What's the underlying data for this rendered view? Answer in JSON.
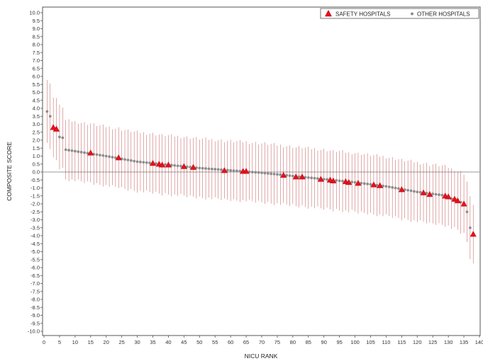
{
  "chart_data": {
    "type": "scatter",
    "xlabel": "NICU RANK",
    "ylabel": "COMPOSITE SCORE",
    "xlim": [
      0,
      140
    ],
    "ylim": [
      -10,
      10
    ],
    "x_ticks": [
      0,
      5,
      10,
      15,
      20,
      25,
      30,
      35,
      40,
      45,
      50,
      55,
      60,
      65,
      70,
      75,
      80,
      85,
      90,
      95,
      100,
      105,
      110,
      115,
      120,
      125,
      130,
      135,
      140
    ],
    "y_ticks": [
      10.0,
      9.5,
      9.0,
      8.5,
      8.0,
      7.5,
      7.0,
      6.5,
      6.0,
      5.5,
      5.0,
      4.5,
      4.0,
      3.5,
      3.0,
      2.5,
      2.0,
      1.5,
      1.0,
      0.5,
      0.0,
      -0.5,
      -1.0,
      -1.5,
      -2.0,
      -2.5,
      -3.0,
      -3.5,
      -4.0,
      -4.5,
      -5.0,
      -5.5,
      -6.0,
      -6.5,
      -7.0,
      -7.5,
      -8.0,
      -8.5,
      -9.0,
      -9.5,
      -10.0
    ],
    "x_tick_labels": [
      "0",
      "5",
      "10",
      "15",
      "20",
      "25",
      "30",
      "35",
      "40",
      "45",
      "50",
      "55",
      "60",
      "65",
      "70",
      "75",
      "80",
      "85",
      "90",
      "95",
      "100",
      "105",
      "110",
      "115",
      "120",
      "125",
      "130",
      "135",
      "140"
    ],
    "y_tick_labels": [
      "10.0",
      "9.5",
      "9.0",
      "8.5",
      "8.0",
      "7.5",
      "7.0",
      "6.5",
      "6.0",
      "5.5",
      "5.0",
      "4.5",
      "4.0",
      "3.5",
      "3.0",
      "2.5",
      "2.0",
      "1.5",
      "1.0",
      "0.5",
      "0.0",
      "-0.5",
      "-1.0",
      "-1.5",
      "-2.0",
      "-2.5",
      "-3.0",
      "-3.5",
      "-4.0",
      "-4.5",
      "-5.0",
      "-5.5",
      "-6.0",
      "-6.5",
      "-7.0",
      "-7.5",
      "-8.0",
      "-8.5",
      "-9.0",
      "-9.5",
      "-10.0"
    ],
    "legend_position": "top-right",
    "reference_line_y": 0,
    "grid": false,
    "series": [
      {
        "name": "SAFETY HOSPITALS",
        "marker": "triangle",
        "color": "#e8101a",
        "points": [
          {
            "x": 3,
            "y": 2.8
          },
          {
            "x": 4,
            "y": 2.7
          },
          {
            "x": 15,
            "y": 1.2
          },
          {
            "x": 24,
            "y": 0.9
          },
          {
            "x": 35,
            "y": 0.55
          },
          {
            "x": 37,
            "y": 0.5
          },
          {
            "x": 38,
            "y": 0.45
          },
          {
            "x": 40,
            "y": 0.45
          },
          {
            "x": 45,
            "y": 0.35
          },
          {
            "x": 48,
            "y": 0.3
          },
          {
            "x": 58,
            "y": 0.1
          },
          {
            "x": 64,
            "y": 0.05
          },
          {
            "x": 65,
            "y": 0.05
          },
          {
            "x": 77,
            "y": -0.2
          },
          {
            "x": 81,
            "y": -0.3
          },
          {
            "x": 83,
            "y": -0.3
          },
          {
            "x": 89,
            "y": -0.45
          },
          {
            "x": 92,
            "y": -0.5
          },
          {
            "x": 93,
            "y": -0.55
          },
          {
            "x": 97,
            "y": -0.6
          },
          {
            "x": 98,
            "y": -0.65
          },
          {
            "x": 101,
            "y": -0.7
          },
          {
            "x": 106,
            "y": -0.8
          },
          {
            "x": 108,
            "y": -0.85
          },
          {
            "x": 115,
            "y": -1.1
          },
          {
            "x": 122,
            "y": -1.3
          },
          {
            "x": 124,
            "y": -1.4
          },
          {
            "x": 129,
            "y": -1.5
          },
          {
            "x": 130,
            "y": -1.55
          },
          {
            "x": 132,
            "y": -1.7
          },
          {
            "x": 133,
            "y": -1.8
          },
          {
            "x": 135,
            "y": -2.0
          },
          {
            "x": 138,
            "y": -3.9
          }
        ]
      },
      {
        "name": "OTHER HOSPITALS",
        "marker": "dot",
        "color": "#8c8c8c",
        "points_described_as": "estimated from curve",
        "anchors": [
          {
            "x": 1,
            "y": 3.8
          },
          {
            "x": 2,
            "y": 3.5
          },
          {
            "x": 5,
            "y": 2.2
          },
          {
            "x": 6,
            "y": 2.15
          },
          {
            "x": 7,
            "y": 1.4
          },
          {
            "x": 20,
            "y": 1.0
          },
          {
            "x": 30,
            "y": 0.65
          },
          {
            "x": 40,
            "y": 0.45
          },
          {
            "x": 50,
            "y": 0.25
          },
          {
            "x": 60,
            "y": 0.1
          },
          {
            "x": 70,
            "y": -0.05
          },
          {
            "x": 80,
            "y": -0.25
          },
          {
            "x": 90,
            "y": -0.45
          },
          {
            "x": 100,
            "y": -0.65
          },
          {
            "x": 110,
            "y": -0.9
          },
          {
            "x": 120,
            "y": -1.25
          },
          {
            "x": 128,
            "y": -1.45
          },
          {
            "x": 134,
            "y": -1.9
          },
          {
            "x": 136,
            "y": -2.5
          },
          {
            "x": 137,
            "y": -3.5
          }
        ]
      }
    ],
    "interval_half_width_description": "approx. 1.9 units in middle ranks, wider at the extremes"
  }
}
